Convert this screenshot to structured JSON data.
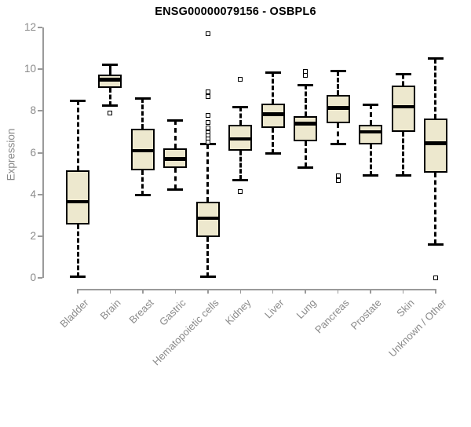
{
  "chart_data": {
    "type": "boxplot",
    "title": "ENSG00000079156 - OSBPL6",
    "ylabel": "Expression",
    "xlabel": "",
    "ylim": [
      0,
      12
    ],
    "yticks": [
      0,
      2,
      4,
      6,
      8,
      10,
      12
    ],
    "grid": false,
    "legend": "none",
    "categories": [
      "Bladder",
      "Brain",
      "Breast",
      "Gastric",
      "Hematopoietic cells",
      "Kidney",
      "Liver",
      "Lung",
      "Pancreas",
      "Prostate",
      "Skin",
      "Unknown / Other"
    ],
    "series": [
      {
        "name": "Bladder",
        "whisker_low": 0.05,
        "q1": 2.55,
        "median": 3.65,
        "q3": 5.15,
        "whisker_high": 8.5,
        "outliers": []
      },
      {
        "name": "Brain",
        "whisker_low": 8.25,
        "q1": 9.1,
        "median": 9.5,
        "q3": 9.75,
        "whisker_high": 10.2,
        "outliers": [
          7.9
        ]
      },
      {
        "name": "Breast",
        "whisker_low": 3.95,
        "q1": 5.15,
        "median": 6.1,
        "q3": 7.15,
        "whisker_high": 8.6,
        "outliers": []
      },
      {
        "name": "Gastric",
        "whisker_low": 4.25,
        "q1": 5.25,
        "median": 5.7,
        "q3": 6.2,
        "whisker_high": 7.55,
        "outliers": []
      },
      {
        "name": "Hematopoietic cells",
        "whisker_low": 0.05,
        "q1": 1.95,
        "median": 2.85,
        "q3": 3.65,
        "whisker_high": 6.4,
        "outliers": [
          11.7,
          8.9,
          8.7,
          7.8,
          7.45,
          7.2,
          6.95,
          6.8,
          6.65,
          6.5
        ]
      },
      {
        "name": "Kidney",
        "whisker_low": 4.7,
        "q1": 6.1,
        "median": 6.65,
        "q3": 7.35,
        "whisker_high": 8.2,
        "outliers": [
          9.5,
          4.15
        ]
      },
      {
        "name": "Liver",
        "whisker_low": 5.95,
        "q1": 7.2,
        "median": 7.85,
        "q3": 8.35,
        "whisker_high": 9.85,
        "outliers": []
      },
      {
        "name": "Lung",
        "whisker_low": 5.3,
        "q1": 6.55,
        "median": 7.4,
        "q3": 7.75,
        "whisker_high": 9.25,
        "outliers": [
          9.9,
          9.7
        ]
      },
      {
        "name": "Pancreas",
        "whisker_low": 6.4,
        "q1": 7.4,
        "median": 8.15,
        "q3": 8.75,
        "whisker_high": 9.9,
        "outliers": [
          4.9,
          4.65
        ]
      },
      {
        "name": "Prostate",
        "whisker_low": 4.9,
        "q1": 6.4,
        "median": 7.0,
        "q3": 7.35,
        "whisker_high": 8.3,
        "outliers": []
      },
      {
        "name": "Skin",
        "whisker_low": 4.9,
        "q1": 7.0,
        "median": 8.2,
        "q3": 9.2,
        "whisker_high": 9.75,
        "outliers": []
      },
      {
        "name": "Unknown / Other",
        "whisker_low": 1.6,
        "q1": 5.05,
        "median": 6.45,
        "q3": 7.65,
        "whisker_high": 10.5,
        "outliers": [
          0.0
        ]
      }
    ],
    "colors": {
      "box_fill": "#EDE8CE",
      "box_border": "#000000",
      "median": "#000000",
      "whisker": "#000000",
      "outlier_border": "#000000",
      "axis_text": "#8a8a8a",
      "axis_line": "#9a9a9a",
      "title": "#000000",
      "background": "#ffffff"
    }
  }
}
